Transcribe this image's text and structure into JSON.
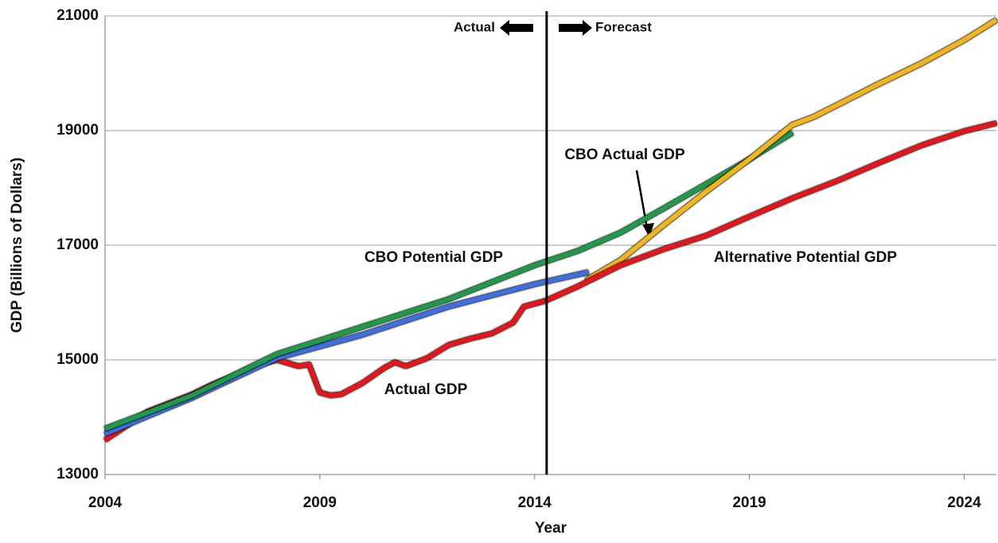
{
  "chart_data": {
    "type": "line",
    "x_label": "Year",
    "y_label": "GDP (Billions of Dollars)",
    "xlim": [
      2004,
      2024.75
    ],
    "xticks": [
      2004,
      2009,
      2014,
      2019,
      2024
    ],
    "ylim": [
      13000,
      21000
    ],
    "yticks": [
      13000,
      15000,
      17000,
      19000,
      21000
    ],
    "grid": true,
    "divider": 2014.28,
    "annotations": [
      "Actual",
      "Forecast"
    ],
    "series": [
      {
        "name": "Actual GDP",
        "color": "#e8141b",
        "x": [
          2004,
          2005,
          2006,
          2006.5,
          2007,
          2007.5,
          2008,
          2008.5,
          2008.75,
          2009,
          2009.25,
          2009.5,
          2010,
          2010.5,
          2010.75,
          2011,
          2011.5,
          2012,
          2012.5,
          2013,
          2013.5,
          2013.75,
          2014.25
        ],
        "values": [
          13600,
          14100,
          14390,
          14570,
          14720,
          14900,
          15000,
          14890,
          14920,
          14430,
          14380,
          14400,
          14600,
          14860,
          14960,
          14890,
          15030,
          15260,
          15370,
          15460,
          15650,
          15930,
          16030
        ]
      },
      {
        "color": "#3d6fe0",
        "x": [
          2004,
          2006,
          2008,
          2010,
          2012,
          2014,
          2015.25
        ],
        "values": [
          13710,
          14330,
          15030,
          15440,
          15930,
          16320,
          16530
        ]
      },
      {
        "name": "CBO Potential GDP",
        "color": "#1f9a4a",
        "x": [
          2004,
          2006,
          2008,
          2010,
          2012,
          2014,
          2015,
          2016,
          2017,
          2018,
          2019,
          2020
        ],
        "values": [
          13800,
          14370,
          15100,
          15580,
          16060,
          16650,
          16900,
          17220,
          17640,
          18070,
          18500,
          18960
        ]
      },
      {
        "name": "CBO Actual GDP",
        "color": "#f2b51c",
        "x": [
          2015.2,
          2016,
          2017,
          2018,
          2019,
          2020,
          2020.5,
          2021,
          2022,
          2023,
          2024,
          2024.75
        ],
        "values": [
          16390,
          16740,
          17350,
          17940,
          18500,
          19100,
          19240,
          19430,
          19810,
          20170,
          20580,
          20930
        ]
      },
      {
        "name": "Alternative Potential GDP",
        "color": "#e8141b",
        "x": [
          2014.25,
          2015,
          2016,
          2017,
          2018,
          2019,
          2020,
          2021,
          2022,
          2023,
          2024,
          2024.75
        ],
        "values": [
          16030,
          16280,
          16650,
          16930,
          17170,
          17500,
          17820,
          18110,
          18430,
          18740,
          18990,
          19130
        ]
      }
    ]
  }
}
